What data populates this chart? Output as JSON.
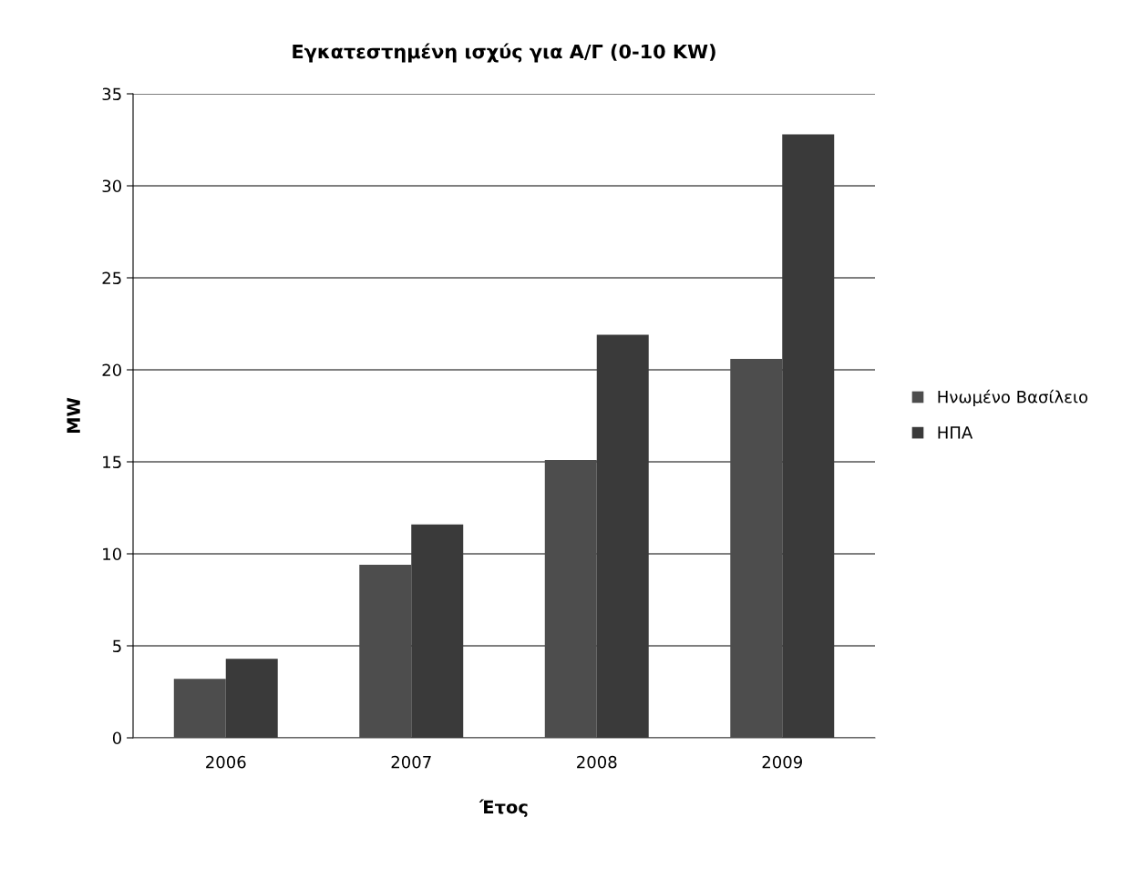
{
  "chart_data": {
    "type": "bar",
    "title": "Εγκατεστημένη ισχύς για Α/Γ (0-10 KW)",
    "xlabel": "Έτος",
    "ylabel": "MW",
    "categories": [
      "2006",
      "2007",
      "2008",
      "2009"
    ],
    "series": [
      {
        "name": "Ηνωμένο Βασίλειο",
        "color": "#4d4d4d",
        "values": [
          3.2,
          9.4,
          15.1,
          20.6
        ]
      },
      {
        "name": "ΗΠΑ",
        "color": "#3a3a3a",
        "values": [
          4.3,
          11.6,
          21.9,
          32.8
        ]
      }
    ],
    "ylim": [
      0,
      35
    ],
    "yticks": [
      0,
      5,
      10,
      15,
      20,
      25,
      30,
      35
    ],
    "grid": "y",
    "legend": "right"
  }
}
